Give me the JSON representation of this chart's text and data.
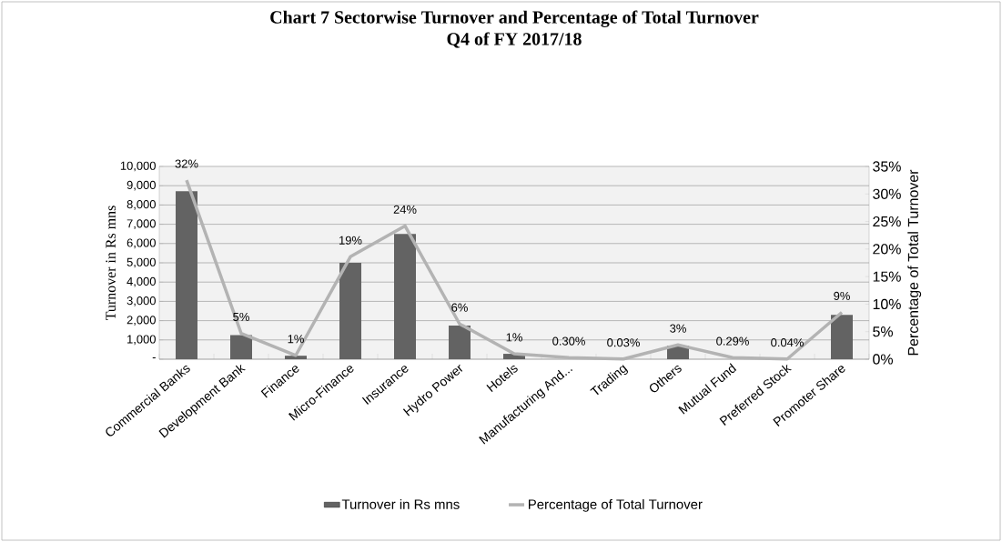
{
  "chart_data": {
    "type": "bar",
    "title": "Chart 7 Sectorwise Turnover and Percentage of Total Turnover",
    "subtitle": "Q4 of FY 2017/18",
    "ylabel": "Turnover in Rs mns",
    "y2label": "Percentage of Total Turnover",
    "categories": [
      "Commercial Banks",
      "Development Bank",
      "Finance",
      "Micro-Finance",
      "Insurance",
      "Hydro Power",
      "Hotels",
      "Manufacturing And...",
      "Trading",
      "Others",
      "Mutual Fund",
      "Preferred Stock",
      "Promoter Share"
    ],
    "series": [
      {
        "name": "Turnover in Rs mns",
        "color": "#636363",
        "values": [
          8720,
          1250,
          180,
          5000,
          6500,
          1750,
          280,
          null,
          null,
          700,
          null,
          null,
          2300
        ]
      },
      {
        "name": "Percentage of Total Turnover",
        "type": "line",
        "axis": "y2",
        "color": "#b3b3b3",
        "values": [
          32.5,
          4.7,
          0.7,
          18.6,
          24.2,
          6.4,
          1.0,
          0.3,
          0.03,
          2.6,
          0.29,
          0.04,
          8.5
        ],
        "value_labels": [
          "32%",
          "5%",
          "1%",
          "19%",
          "24%",
          "6%",
          "1%",
          "0.30%",
          "0.03%",
          "3%",
          "0.29%",
          "0.04%",
          "9%"
        ]
      }
    ],
    "ylim": [
      0,
      10000
    ],
    "yticks": [
      {
        "value": 0,
        "label": "-"
      },
      {
        "value": 1000,
        "label": "1,000"
      },
      {
        "value": 2000,
        "label": "2,000"
      },
      {
        "value": 3000,
        "label": "3,000"
      },
      {
        "value": 4000,
        "label": "4,000"
      },
      {
        "value": 5000,
        "label": "5,000"
      },
      {
        "value": 6000,
        "label": "6,000"
      },
      {
        "value": 7000,
        "label": "7,000"
      },
      {
        "value": 8000,
        "label": "8,000"
      },
      {
        "value": 9000,
        "label": "9,000"
      },
      {
        "value": 10000,
        "label": "10,000"
      }
    ],
    "y2lim": [
      0,
      35
    ],
    "y2ticks": [
      {
        "value": 0,
        "label": "0%"
      },
      {
        "value": 5,
        "label": "5%"
      },
      {
        "value": 10,
        "label": "10%"
      },
      {
        "value": 15,
        "label": "15%"
      },
      {
        "value": 20,
        "label": "20%"
      },
      {
        "value": 25,
        "label": "25%"
      },
      {
        "value": 30,
        "label": "30%"
      },
      {
        "value": 35,
        "label": "35%"
      }
    ],
    "grid": "y",
    "legend": "bottom"
  }
}
